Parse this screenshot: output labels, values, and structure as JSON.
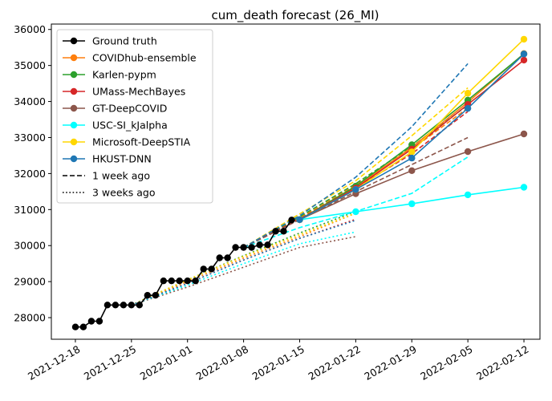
{
  "chart_data": {
    "type": "line",
    "title": "cum_death forecast (26_MI)",
    "xlabel": "",
    "ylabel": "",
    "xlim": [
      "2021-12-15",
      "2022-02-14"
    ],
    "ylim": [
      27400,
      36150
    ],
    "x_ticks": [
      "2021-12-18",
      "2021-12-25",
      "2022-01-01",
      "2022-01-08",
      "2022-01-15",
      "2022-01-22",
      "2022-01-29",
      "2022-02-05",
      "2022-02-12"
    ],
    "y_ticks": [
      28000,
      29000,
      30000,
      31000,
      32000,
      33000,
      34000,
      35000,
      36000
    ],
    "grid": false,
    "legend_position": "upper-left",
    "legend": [
      {
        "label": "Ground truth",
        "color": "#000000",
        "style": "solid",
        "marker": true
      },
      {
        "label": "COVIDhub-ensemble",
        "color": "#ff7f0e",
        "style": "solid",
        "marker": true
      },
      {
        "label": "Karlen-pypm",
        "color": "#2ca02c",
        "style": "solid",
        "marker": true
      },
      {
        "label": "UMass-MechBayes",
        "color": "#d62728",
        "style": "solid",
        "marker": true
      },
      {
        "label": "GT-DeepCOVID",
        "color": "#8c564b",
        "style": "solid",
        "marker": true
      },
      {
        "label": "USC-SI_kJalpha",
        "color": "#00ffff",
        "style": "solid",
        "marker": true
      },
      {
        "label": "Microsoft-DeepSTIA",
        "color": "#ffd700",
        "style": "solid",
        "marker": true
      },
      {
        "label": "HKUST-DNN",
        "color": "#1f77b4",
        "style": "solid",
        "marker": true
      },
      {
        "label": "1 week ago",
        "color": "#000000",
        "style": "dashed",
        "marker": false
      },
      {
        "label": "3 weeks ago",
        "color": "#000000",
        "style": "dotted",
        "marker": false
      }
    ],
    "ground_truth": {
      "name": "Ground truth",
      "color": "#000000",
      "x": [
        "2021-12-18",
        "2021-12-19",
        "2021-12-20",
        "2021-12-21",
        "2021-12-22",
        "2021-12-23",
        "2021-12-24",
        "2021-12-25",
        "2021-12-26",
        "2021-12-27",
        "2021-12-28",
        "2021-12-29",
        "2021-12-30",
        "2021-12-31",
        "2022-01-01",
        "2022-01-02",
        "2022-01-03",
        "2022-01-04",
        "2022-01-05",
        "2022-01-06",
        "2022-01-07",
        "2022-01-08",
        "2022-01-09",
        "2022-01-10",
        "2022-01-11",
        "2022-01-12",
        "2022-01-13",
        "2022-01-14"
      ],
      "y": [
        27740,
        27740,
        27900,
        27900,
        28350,
        28350,
        28350,
        28350,
        28350,
        28620,
        28620,
        29020,
        29020,
        29020,
        29020,
        29020,
        29350,
        29350,
        29660,
        29660,
        29950,
        29950,
        29950,
        30020,
        30020,
        30400,
        30400,
        30710
      ]
    },
    "forecasts": [
      {
        "name": "COVIDhub-ensemble",
        "color": "#ff7f0e",
        "x": [
          "2022-01-15",
          "2022-01-22",
          "2022-01-29",
          "2022-02-05",
          "2022-02-12"
        ],
        "y": [
          30720,
          31620,
          32730,
          33980,
          35330
        ]
      },
      {
        "name": "Karlen-pypm",
        "color": "#2ca02c",
        "x": [
          "2022-01-15",
          "2022-01-22",
          "2022-01-29",
          "2022-02-05",
          "2022-02-12"
        ],
        "y": [
          30720,
          31650,
          32800,
          34040,
          35320
        ]
      },
      {
        "name": "UMass-MechBayes",
        "color": "#d62728",
        "x": [
          "2022-01-15",
          "2022-01-22",
          "2022-01-29",
          "2022-02-05",
          "2022-02-12"
        ],
        "y": [
          30720,
          31600,
          32680,
          33920,
          35150
        ]
      },
      {
        "name": "GT-DeepCOVID",
        "color": "#8c564b",
        "x": [
          "2022-01-15",
          "2022-01-22",
          "2022-01-29",
          "2022-02-05",
          "2022-02-12"
        ],
        "y": [
          30720,
          31440,
          32080,
          32610,
          33100
        ]
      },
      {
        "name": "USC-SI_kJalpha",
        "color": "#00ffff",
        "x": [
          "2022-01-15",
          "2022-01-22",
          "2022-01-29",
          "2022-02-05",
          "2022-02-12"
        ],
        "y": [
          30720,
          30940,
          31160,
          31410,
          31620
        ]
      },
      {
        "name": "Microsoft-DeepSTIA",
        "color": "#ffd700",
        "x": [
          "2022-01-15",
          "2022-01-22",
          "2022-01-29",
          "2022-02-05",
          "2022-02-12"
        ],
        "y": [
          30720,
          31560,
          32600,
          34230,
          35730
        ]
      },
      {
        "name": "HKUST-DNN",
        "color": "#1f77b4",
        "x": [
          "2022-01-15",
          "2022-01-22",
          "2022-01-29",
          "2022-02-05",
          "2022-02-12"
        ],
        "y": [
          30720,
          31560,
          32430,
          33810,
          35320
        ]
      }
    ],
    "one_week_ago": [
      {
        "color": "#ff7f0e",
        "x": [
          "2022-01-08",
          "2022-01-15",
          "2022-01-22",
          "2022-01-29",
          "2022-02-05"
        ],
        "y": [
          29950,
          30760,
          31680,
          32680,
          33820
        ]
      },
      {
        "color": "#2ca02c",
        "x": [
          "2022-01-08",
          "2022-01-15",
          "2022-01-22",
          "2022-01-29",
          "2022-02-05"
        ],
        "y": [
          29950,
          30800,
          31720,
          32750,
          33900
        ]
      },
      {
        "color": "#d62728",
        "x": [
          "2022-01-08",
          "2022-01-15",
          "2022-01-22",
          "2022-01-29",
          "2022-02-05"
        ],
        "y": [
          29950,
          30740,
          31600,
          32550,
          33720
        ]
      },
      {
        "color": "#8c564b",
        "x": [
          "2022-01-08",
          "2022-01-15",
          "2022-01-22",
          "2022-01-29",
          "2022-02-05"
        ],
        "y": [
          29950,
          30720,
          31500,
          32250,
          33000
        ]
      },
      {
        "color": "#00ffff",
        "x": [
          "2022-01-08",
          "2022-01-15",
          "2022-01-22",
          "2022-01-29",
          "2022-02-05"
        ],
        "y": [
          29950,
          30500,
          30950,
          31450,
          32460
        ]
      },
      {
        "color": "#ffd700",
        "x": [
          "2022-01-08",
          "2022-01-15",
          "2022-01-22",
          "2022-01-29",
          "2022-02-05"
        ],
        "y": [
          29950,
          30880,
          31800,
          33050,
          34380
        ]
      },
      {
        "color": "#1f77b4",
        "x": [
          "2022-01-08",
          "2022-01-15",
          "2022-01-22",
          "2022-01-29",
          "2022-02-05"
        ],
        "y": [
          29950,
          30830,
          31900,
          33300,
          35050
        ]
      }
    ],
    "three_weeks_ago": [
      {
        "color": "#ff7f0e",
        "x": [
          "2021-12-25",
          "2022-01-01",
          "2022-01-08",
          "2022-01-15",
          "2022-01-22"
        ],
        "y": [
          28350,
          29000,
          29650,
          30250,
          30900
        ]
      },
      {
        "color": "#2ca02c",
        "x": [
          "2021-12-25",
          "2022-01-01",
          "2022-01-08",
          "2022-01-15",
          "2022-01-22"
        ],
        "y": [
          28350,
          29050,
          29720,
          30350,
          30950
        ]
      },
      {
        "color": "#d62728",
        "x": [
          "2021-12-25",
          "2022-01-01",
          "2022-01-08",
          "2022-01-15",
          "2022-01-22"
        ],
        "y": [
          28350,
          28950,
          29600,
          30200,
          30730
        ]
      },
      {
        "color": "#8c564b",
        "x": [
          "2021-12-25",
          "2022-01-01",
          "2022-01-08",
          "2022-01-15",
          "2022-01-22"
        ],
        "y": [
          28350,
          28850,
          29400,
          29950,
          30250
        ]
      },
      {
        "color": "#00ffff",
        "x": [
          "2021-12-25",
          "2022-01-01",
          "2022-01-08",
          "2022-01-15",
          "2022-01-22"
        ],
        "y": [
          28350,
          28900,
          29500,
          30050,
          30380
        ]
      },
      {
        "color": "#ffd700",
        "x": [
          "2021-12-25",
          "2022-01-01",
          "2022-01-08",
          "2022-01-15",
          "2022-01-22"
        ],
        "y": [
          28350,
          29050,
          29700,
          30300,
          30900
        ]
      },
      {
        "color": "#1f77b4",
        "x": [
          "2021-12-25",
          "2022-01-01",
          "2022-01-08",
          "2022-01-15",
          "2022-01-22"
        ],
        "y": [
          28350,
          28950,
          29600,
          30200,
          30700
        ]
      }
    ]
  }
}
